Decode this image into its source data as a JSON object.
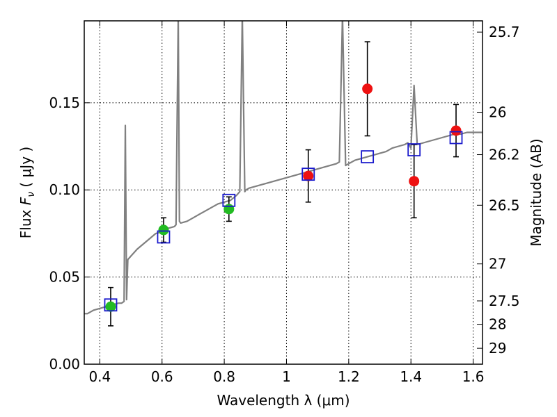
{
  "chart_data": {
    "type": "scatter",
    "xlabel": "Wavelength  λ (μm)",
    "ylabel": "Flux  F_ν  ( μJy )",
    "ylabel_parts": {
      "prefix": "Flux  ",
      "symbol": "F",
      "subscript": "ν",
      "suffix": "  ( μJy )"
    },
    "y2label": "Magnitude (AB)",
    "xlim": [
      0.35,
      1.63
    ],
    "ylim": [
      0.0,
      0.197
    ],
    "grid": true,
    "x_ticks": [
      0.4,
      0.6,
      0.8,
      1.0,
      1.2,
      1.4,
      1.6
    ],
    "x_tick_labels": [
      "0.4",
      "0.6",
      "0.8",
      "1",
      "1.2",
      "1.4",
      "1.6"
    ],
    "y_ticks": [
      0.0,
      0.05,
      0.1,
      0.15
    ],
    "y_tick_labels": [
      "0.00",
      "0.05",
      "0.10",
      "0.15"
    ],
    "y2_ticks": [
      25.7,
      26,
      26.2,
      26.5,
      27,
      27.5,
      28,
      29
    ],
    "y2_tick_labels": [
      "25.7",
      "26",
      "26.2",
      "26.5",
      "27",
      "27.5",
      "28",
      "29"
    ],
    "colors": {
      "spectrum": "#808080",
      "optical_points": "#22bb22",
      "nir_points": "#ee1111",
      "model_boxes": "#1a1acc",
      "error_bars": "#000000",
      "grid": "#000000"
    },
    "series": [
      {
        "kind": "line",
        "x": [
          0.35,
          0.36,
          0.38,
          0.4,
          0.42,
          0.44,
          0.46,
          0.47,
          0.478,
          0.482,
          0.486,
          0.49,
          0.5,
          0.52,
          0.54,
          0.56,
          0.58,
          0.6,
          0.62,
          0.64,
          0.645,
          0.652,
          0.656,
          0.66,
          0.68,
          0.7,
          0.72,
          0.74,
          0.76,
          0.78,
          0.8,
          0.82,
          0.84,
          0.85,
          0.858,
          0.866,
          0.87,
          0.88,
          0.9,
          0.92,
          0.94,
          0.96,
          0.98,
          1.0,
          1.02,
          1.04,
          1.06,
          1.08,
          1.1,
          1.12,
          1.14,
          1.16,
          1.17,
          1.18,
          1.19,
          1.2,
          1.22,
          1.24,
          1.26,
          1.28,
          1.3,
          1.32,
          1.34,
          1.36,
          1.38,
          1.39,
          1.4,
          1.41,
          1.42,
          1.44,
          1.46,
          1.48,
          1.5,
          1.52,
          1.54,
          1.56,
          1.58,
          1.6,
          1.63
        ],
        "y": [
          0.029,
          0.029,
          0.031,
          0.032,
          0.033,
          0.034,
          0.035,
          0.035,
          0.036,
          0.137,
          0.037,
          0.06,
          0.062,
          0.066,
          0.069,
          0.072,
          0.075,
          0.076,
          0.078,
          0.079,
          0.08,
          0.2,
          0.082,
          0.081,
          0.082,
          0.084,
          0.086,
          0.088,
          0.09,
          0.092,
          0.093,
          0.094,
          0.097,
          0.099,
          0.2,
          0.099,
          0.1,
          0.101,
          0.102,
          0.103,
          0.104,
          0.105,
          0.106,
          0.107,
          0.108,
          0.109,
          0.11,
          0.111,
          0.112,
          0.113,
          0.114,
          0.115,
          0.116,
          0.2,
          0.114,
          0.115,
          0.117,
          0.118,
          0.119,
          0.12,
          0.121,
          0.122,
          0.124,
          0.125,
          0.126,
          0.127,
          0.124,
          0.16,
          0.126,
          0.127,
          0.128,
          0.129,
          0.13,
          0.131,
          0.132,
          0.132,
          0.133,
          0.133,
          0.133
        ]
      },
      {
        "kind": "points",
        "x": [
          0.435,
          0.605,
          0.815
        ],
        "y": [
          0.033,
          0.077,
          0.089
        ],
        "yerr": [
          0.011,
          0.007,
          0.007
        ]
      },
      {
        "kind": "points",
        "x": [
          1.07,
          1.26,
          1.41,
          1.545
        ],
        "y": [
          0.108,
          0.158,
          0.105,
          0.134
        ],
        "yerr": [
          0.015,
          0.027,
          0.021,
          0.015
        ]
      },
      {
        "kind": "open-squares",
        "x": [
          0.435,
          0.605,
          0.815,
          1.07,
          1.26,
          1.41,
          1.545
        ],
        "y": [
          0.034,
          0.073,
          0.094,
          0.109,
          0.119,
          0.123,
          0.13
        ]
      }
    ]
  }
}
